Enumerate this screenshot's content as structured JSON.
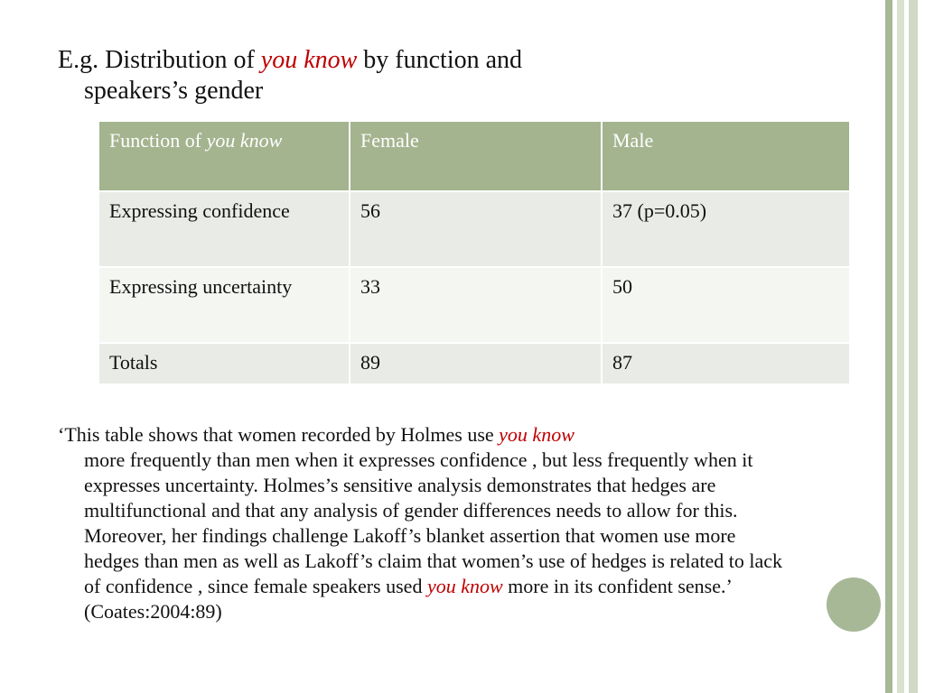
{
  "heading": {
    "prefix": "E.g. Distribution of ",
    "emphasis": "you know",
    "suffix": "  by function and",
    "line2": "speakers’s  gender"
  },
  "table": {
    "headers": {
      "function_prefix": "Function of ",
      "function_emphasis": "you know",
      "female": "Female",
      "male": "Male"
    },
    "rows": [
      {
        "function": "Expressing confidence",
        "female": "56",
        "male": "37 (p=0.05)"
      },
      {
        "function": "Expressing uncertainty",
        "female": "33",
        "male": "50"
      },
      {
        "function": "Totals",
        "female": "89",
        "male": "87"
      }
    ]
  },
  "quote": {
    "open_mark": "‘",
    "part1": "This table shows that women recorded by Holmes use ",
    "emphasis1": "you know",
    "part2": "more frequently than men when it expresses confidence , but less frequently when it expresses uncertainty. Holmes’s sensitive analysis demonstrates that hedges are multifunctional  and that any analysis of gender differences needs to allow for this. Moreover,  her findings challenge Lakoff’s blanket assertion that women use more hedges than men as well as Lakoff’s claim that women’s use of hedges  is related to lack of confidence , since female speakers used ",
    "emphasis2": "you know",
    "part3": " more in its confident sense.’ (Coates:2004:89)"
  },
  "colors": {
    "accent_green": "#a3b48f",
    "emphasis_red": "#c00000",
    "row_light": "#e9ece6",
    "row_pale": "#f4f6f2"
  }
}
